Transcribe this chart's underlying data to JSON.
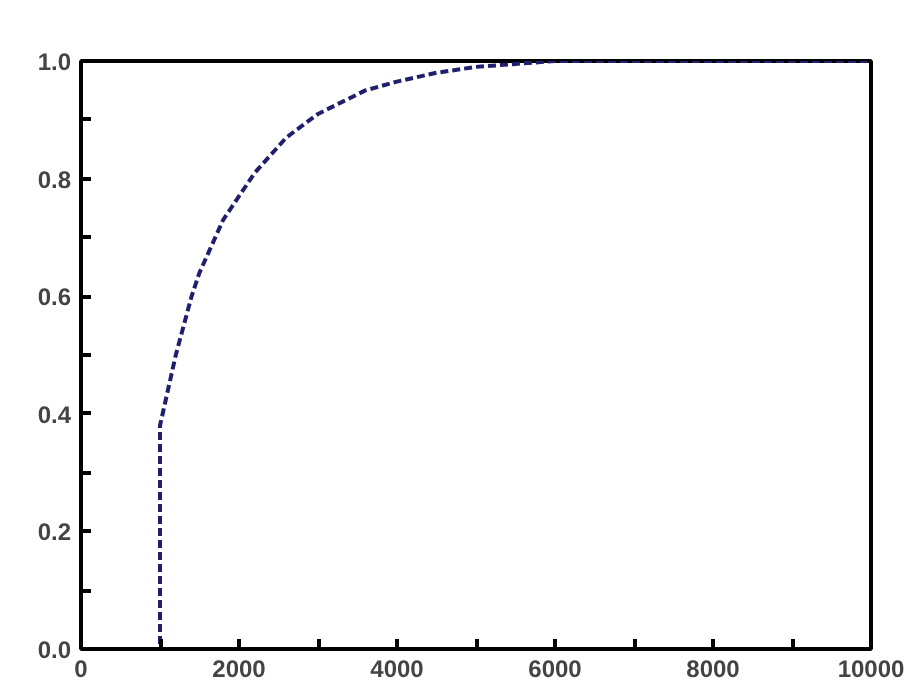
{
  "chart_data": {
    "type": "line",
    "x": [
      0,
      1000,
      1000,
      1100,
      1200,
      1300,
      1400,
      1500,
      1600,
      1700,
      1800,
      2000,
      2200,
      2400,
      2600,
      2800,
      3000,
      3300,
      3600,
      4000,
      4500,
      5000,
      5500,
      6000,
      10000
    ],
    "series": [
      {
        "color": "#1f1f6e",
        "values": [
          0,
          0,
          0.38,
          0.44,
          0.5,
          0.55,
          0.6,
          0.64,
          0.67,
          0.7,
          0.73,
          0.77,
          0.81,
          0.84,
          0.87,
          0.89,
          0.91,
          0.93,
          0.95,
          0.965,
          0.98,
          0.99,
          0.995,
          1.0,
          1.0
        ]
      }
    ],
    "xlim": [
      0,
      10000
    ],
    "ylim": [
      0,
      1
    ],
    "xticks": [
      0,
      {
        "value": 1000,
        "label": null
      },
      2000,
      {
        "value": 3000,
        "label": null
      },
      4000,
      {
        "value": 5000,
        "label": null
      },
      6000,
      {
        "value": 7000,
        "label": null
      },
      8000,
      {
        "value": 9000,
        "label": null
      },
      10000
    ],
    "yticks": [
      {
        "value": 0,
        "label": "0.0"
      },
      {
        "value": 0.1,
        "label": null
      },
      0.2,
      {
        "value": 0.3,
        "label": null
      },
      0.4,
      {
        "value": 0.5,
        "label": null
      },
      0.6,
      {
        "value": 0.7,
        "label": null
      },
      0.8,
      {
        "value": 0.9,
        "label": null
      },
      {
        "value": 1,
        "label": "1.0"
      }
    ],
    "grid": false,
    "line_style": "dashed",
    "marker": "none"
  }
}
